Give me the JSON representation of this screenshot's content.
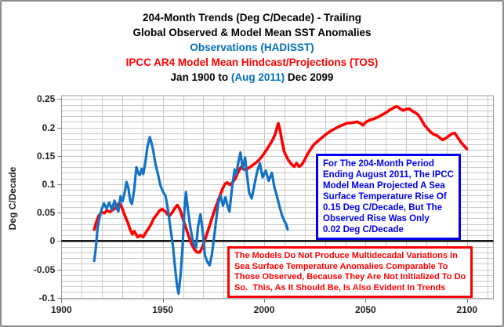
{
  "header": {
    "title_line1": "204-Month Trends (Deg C/Decade) - Trailing",
    "title_line2": "Global Observed & Model Mean SST Anomalies",
    "title_line3": "Observations (HADISST)",
    "title_line4": "IPCC AR4 Model Mean Hindcast/Projections (TOS)",
    "title_line5_prefix": "Jan 1900 to ",
    "title_line5_highlight": "(Aug 2011)",
    "title_line5_suffix": " Dec 2099"
  },
  "colors": {
    "observed_blue": "#1273C6",
    "model_red": "#FF0000",
    "title_blue": "#0070C0",
    "annotation_blue": "#0000EE",
    "grid": "#C9C9C9",
    "plot_border": "#9A9A9A",
    "zero_line": "#000000"
  },
  "annotations": {
    "projection_note": {
      "color": "#0000EE",
      "lines": [
        "For The 204-Month Period",
        "Ending August 2011, The IPCC",
        "Model Mean Projected A Sea",
        "Surface Temperature Rise Of",
        "0.15 Deg C/Decade, But The",
        "Observed Rise Was Only",
        "0.02 Deg C/Decade"
      ]
    },
    "models_note": {
      "color": "#FF0000",
      "lines": [
        "The Models Do Not Produce Multidecadal Variations In",
        "Sea Surface Temperature Anomalies Comparable To",
        "Those Observed, Because They Are Not Initialized To Do",
        "So.  This, As It Should Be, Is Also Evident In Trends"
      ]
    }
  },
  "chart_data": {
    "type": "line",
    "title": "204-Month Trends (Deg C/Decade) - Trailing Global Observed & Model Mean SST Anomalies",
    "xlabel": "",
    "ylabel": "Deg C/Decade",
    "grid": true,
    "x_axis": {
      "min": 1900,
      "max": 2113,
      "tick_years": [
        1900,
        1950,
        2000,
        2050,
        2100
      ],
      "tick_labels": [
        "1900",
        "1950",
        "2000",
        "2050",
        "2100"
      ],
      "minor_grid_step_years": 10
    },
    "y_axis": {
      "label": "Deg C/Decade",
      "min": -0.1,
      "max": 0.25,
      "tick_values": [
        0.25,
        0.2,
        0.15,
        0.1,
        0.05,
        0,
        -0.05,
        -0.1
      ],
      "tick_labels": [
        "0.25",
        "0.2",
        "0.15",
        "0.1",
        "0.05",
        "0",
        "-0.05",
        "-0.1"
      ],
      "minor_grid_step": 0.01
    },
    "key_values": {
      "model_trend_ending_aug_2011": 0.15,
      "observed_trend_ending_aug_2011": 0.02
    },
    "series": [
      {
        "name": "IPCC AR4 Model Mean Hindcast/Projections (TOS)",
        "color": "#FF0000",
        "width": 3.6,
        "points": [
          [
            1916.2,
            0.02
          ],
          [
            1917.2,
            0.033
          ],
          [
            1918.5,
            0.045
          ],
          [
            1920,
            0.051
          ],
          [
            1921.2,
            0.049
          ],
          [
            1922.5,
            0.054
          ],
          [
            1923.8,
            0.051
          ],
          [
            1925,
            0.054
          ],
          [
            1926.3,
            0.057
          ],
          [
            1927.6,
            0.063
          ],
          [
            1928.8,
            0.068
          ],
          [
            1930,
            0.057
          ],
          [
            1931.4,
            0.044
          ],
          [
            1932.8,
            0.032
          ],
          [
            1934,
            0.019
          ],
          [
            1935,
            0.012
          ],
          [
            1936,
            0.017
          ],
          [
            1937.6,
            0.007
          ],
          [
            1939,
            0.01
          ],
          [
            1940.4,
            0.007
          ],
          [
            1941.8,
            0.016
          ],
          [
            1943,
            0.022
          ],
          [
            1944.3,
            0.03
          ],
          [
            1945.6,
            0.04
          ],
          [
            1947,
            0.046
          ],
          [
            1948.3,
            0.053
          ],
          [
            1949.6,
            0.056
          ],
          [
            1951,
            0.053
          ],
          [
            1952.3,
            0.047
          ],
          [
            1953.5,
            0.045
          ],
          [
            1954.8,
            0.051
          ],
          [
            1956,
            0.058
          ],
          [
            1957.2,
            0.063
          ],
          [
            1958.5,
            0.055
          ],
          [
            1959.5,
            0.044
          ],
          [
            1960.8,
            0.03
          ],
          [
            1962,
            0.017
          ],
          [
            1963.2,
            0.004
          ],
          [
            1964.4,
            -0.007
          ],
          [
            1965.8,
            -0.016
          ],
          [
            1967,
            -0.02
          ],
          [
            1968.2,
            -0.02
          ],
          [
            1969.4,
            -0.012
          ],
          [
            1970.6,
            0.0
          ],
          [
            1971.8,
            0.013
          ],
          [
            1973.2,
            0.028
          ],
          [
            1974.5,
            0.043
          ],
          [
            1975.8,
            0.057
          ],
          [
            1977,
            0.068
          ],
          [
            1978.2,
            0.08
          ],
          [
            1979.5,
            0.092
          ],
          [
            1980.6,
            0.1
          ],
          [
            1981.8,
            0.103
          ],
          [
            1983,
            0.099
          ],
          [
            1984.4,
            0.103
          ],
          [
            1985.8,
            0.11
          ],
          [
            1987,
            0.12
          ],
          [
            1988.5,
            0.13
          ],
          [
            1990,
            0.126
          ],
          [
            1991.5,
            0.127
          ],
          [
            1993,
            0.13
          ],
          [
            1994.5,
            0.134
          ],
          [
            1996,
            0.138
          ],
          [
            1997.5,
            0.143
          ],
          [
            1999,
            0.149
          ],
          [
            2000.3,
            0.156
          ],
          [
            2001.6,
            0.163
          ],
          [
            2003,
            0.171
          ],
          [
            2004.3,
            0.179
          ],
          [
            2005.5,
            0.189
          ],
          [
            2006.3,
            0.199
          ],
          [
            2007,
            0.207
          ],
          [
            2007.8,
            0.196
          ],
          [
            2008.8,
            0.176
          ],
          [
            2009.8,
            0.158
          ],
          [
            2010.8,
            0.15
          ],
          [
            2012,
            0.142
          ],
          [
            2013.5,
            0.135
          ],
          [
            2014.8,
            0.131
          ],
          [
            2016,
            0.137
          ],
          [
            2017.2,
            0.131
          ],
          [
            2018.5,
            0.134
          ],
          [
            2019.8,
            0.142
          ],
          [
            2021.2,
            0.152
          ],
          [
            2022.8,
            0.161
          ],
          [
            2024.5,
            0.17
          ],
          [
            2026.5,
            0.176
          ],
          [
            2028.5,
            0.182
          ],
          [
            2030.5,
            0.188
          ],
          [
            2032.5,
            0.193
          ],
          [
            2034.5,
            0.197
          ],
          [
            2036.5,
            0.201
          ],
          [
            2038.5,
            0.204
          ],
          [
            2040.5,
            0.207
          ],
          [
            2042.5,
            0.208
          ],
          [
            2044.5,
            0.209
          ],
          [
            2046,
            0.21
          ],
          [
            2047.5,
            0.207
          ],
          [
            2048.8,
            0.204
          ],
          [
            2050,
            0.209
          ],
          [
            2052,
            0.213
          ],
          [
            2054,
            0.215
          ],
          [
            2056,
            0.218
          ],
          [
            2058,
            0.222
          ],
          [
            2060,
            0.226
          ],
          [
            2062,
            0.231
          ],
          [
            2064,
            0.235
          ],
          [
            2065.5,
            0.237
          ],
          [
            2067,
            0.233
          ],
          [
            2068.5,
            0.23
          ],
          [
            2070,
            0.232
          ],
          [
            2071.5,
            0.233
          ],
          [
            2073,
            0.229
          ],
          [
            2074.5,
            0.226
          ],
          [
            2076,
            0.222
          ],
          [
            2077.5,
            0.214
          ],
          [
            2079,
            0.204
          ],
          [
            2080.5,
            0.198
          ],
          [
            2082,
            0.192
          ],
          [
            2083.5,
            0.188
          ],
          [
            2085,
            0.186
          ],
          [
            2086.5,
            0.182
          ],
          [
            2088,
            0.178
          ],
          [
            2089.5,
            0.181
          ],
          [
            2091,
            0.185
          ],
          [
            2092.5,
            0.189
          ],
          [
            2094,
            0.19
          ],
          [
            2095.5,
            0.182
          ],
          [
            2097,
            0.174
          ],
          [
            2098.5,
            0.168
          ],
          [
            2099.9,
            0.162
          ]
        ]
      },
      {
        "name": "Observations (HADISST)",
        "color": "#1273C6",
        "width": 3.2,
        "points": [
          [
            1916.2,
            -0.035
          ],
          [
            1917,
            -0.012
          ],
          [
            1917.8,
            0.022
          ],
          [
            1918.8,
            0.04
          ],
          [
            1919.8,
            0.055
          ],
          [
            1921,
            0.066
          ],
          [
            1922.3,
            0.057
          ],
          [
            1923.6,
            0.068
          ],
          [
            1924.9,
            0.055
          ],
          [
            1926.2,
            0.071
          ],
          [
            1927.3,
            0.058
          ],
          [
            1928.1,
            0.052
          ],
          [
            1929.2,
            0.079
          ],
          [
            1930.2,
            0.07
          ],
          [
            1931.2,
            0.085
          ],
          [
            1932.1,
            0.104
          ],
          [
            1933,
            0.094
          ],
          [
            1933.9,
            0.072
          ],
          [
            1934.8,
            0.065
          ],
          [
            1935.9,
            0.09
          ],
          [
            1937,
            0.13
          ],
          [
            1938,
            0.119
          ],
          [
            1938.7,
            0.116
          ],
          [
            1939.6,
            0.127
          ],
          [
            1940.4,
            0.118
          ],
          [
            1941.3,
            0.136
          ],
          [
            1942.4,
            0.165
          ],
          [
            1943.6,
            0.183
          ],
          [
            1944.5,
            0.172
          ],
          [
            1945.3,
            0.159
          ],
          [
            1946.4,
            0.135
          ],
          [
            1947.6,
            0.118
          ],
          [
            1948.8,
            0.098
          ],
          [
            1950.1,
            0.087
          ],
          [
            1951.4,
            0.079
          ],
          [
            1952.6,
            0.054
          ],
          [
            1953.8,
            0.022
          ],
          [
            1955,
            -0.008
          ],
          [
            1956,
            -0.045
          ],
          [
            1957,
            -0.078
          ],
          [
            1957.8,
            -0.093
          ],
          [
            1958.8,
            -0.06
          ],
          [
            1959.8,
            -0.008
          ],
          [
            1960.6,
            0.05
          ],
          [
            1961.4,
            0.086
          ],
          [
            1962.3,
            0.058
          ],
          [
            1963.5,
            0.026
          ],
          [
            1964.6,
            0.004
          ],
          [
            1965.7,
            -0.009
          ],
          [
            1966.4,
            -0.012
          ],
          [
            1967.4,
            0.026
          ],
          [
            1968.6,
            0.047
          ],
          [
            1969.8,
            0.014
          ],
          [
            1970.8,
            -0.026
          ],
          [
            1971.9,
            -0.036
          ],
          [
            1973.1,
            -0.043
          ],
          [
            1974.2,
            -0.024
          ],
          [
            1975.3,
            0.006
          ],
          [
            1976.3,
            0.036
          ],
          [
            1977.3,
            0.065
          ],
          [
            1978.5,
            0.08
          ],
          [
            1979.7,
            0.062
          ],
          [
            1980.9,
            0.077
          ],
          [
            1982,
            0.061
          ],
          [
            1982.9,
            0.052
          ],
          [
            1984.1,
            0.092
          ],
          [
            1985.4,
            0.126
          ],
          [
            1986.3,
            0.118
          ],
          [
            1987.4,
            0.141
          ],
          [
            1988.3,
            0.156
          ],
          [
            1989.4,
            0.127
          ],
          [
            1990.6,
            0.147
          ],
          [
            1991.6,
            0.114
          ],
          [
            1992.6,
            0.085
          ],
          [
            1993.9,
            0.075
          ],
          [
            1995.3,
            0.101
          ],
          [
            1996.6,
            0.123
          ],
          [
            1997.9,
            0.137
          ],
          [
            1999.2,
            0.112
          ],
          [
            2000.8,
            0.124
          ],
          [
            2002.2,
            0.106
          ],
          [
            2003.8,
            0.12
          ],
          [
            2005,
            0.095
          ],
          [
            2006.2,
            0.08
          ],
          [
            2007.5,
            0.062
          ],
          [
            2008.8,
            0.045
          ],
          [
            2010,
            0.035
          ],
          [
            2010.9,
            0.029
          ],
          [
            2011.6,
            0.02
          ]
        ]
      }
    ]
  }
}
